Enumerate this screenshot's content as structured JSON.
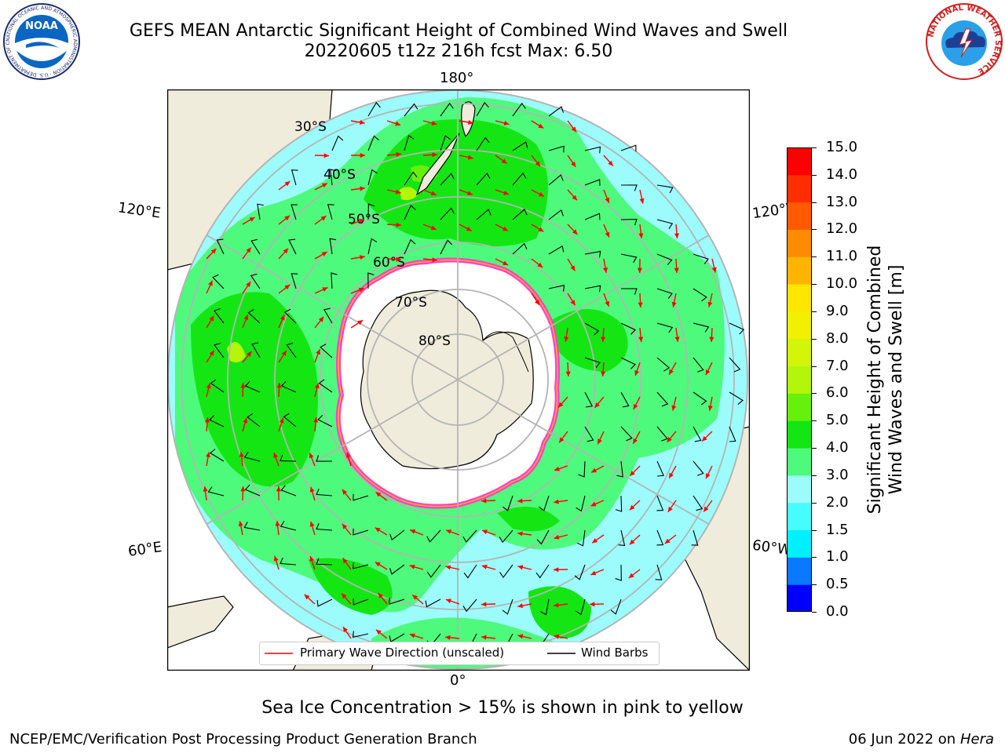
{
  "header": {
    "title_line1": "GEFS MEAN Antarctic Significant Height of Combined Wind Waves and Swell",
    "title_line2": "20220605 t12z 216h fcst   Max: 6.50"
  },
  "logos": {
    "left": {
      "name": "NOAA",
      "text": "NOAA",
      "ring_text": "NATIONAL OCEANIC AND ATMOSPHERIC ADMINISTRATION · U.S. DEPARTMENT OF COMMERCE"
    },
    "right": {
      "name": "National Weather Service",
      "ring_text": "NATIONAL WEATHER SERVICE"
    }
  },
  "map": {
    "longitude_labels": {
      "top": "180°",
      "bottom": "0°",
      "upper_left": "120°E",
      "upper_right": "120°W",
      "lower_left": "60°E",
      "lower_right": "60°W"
    },
    "latitude_labels": [
      "30°S",
      "40°S",
      "50°S",
      "60°S",
      "70°S",
      "80°S"
    ],
    "colors": {
      "ocean_light": "#9cfcfc",
      "ocean_mid": "#4efa7c",
      "ocean_high": "#14e614",
      "ocean_peak": "#66f00a",
      "land": "#efecdc",
      "ice": "#ffffff",
      "ice_edge": "#ff3cd8",
      "grid": "#b4b4b4"
    }
  },
  "colorbar": {
    "label_line1": "Significant Height of Combined",
    "label_line2": "Wind Waves and Swell [m]",
    "ticks": [
      "0.0",
      "0.5",
      "1.0",
      "1.5",
      "2.0",
      "3.0",
      "4.0",
      "5.0",
      "6.0",
      "7.0",
      "8.0",
      "9.0",
      "10.0",
      "11.0",
      "12.0",
      "13.0",
      "14.0",
      "15.0"
    ],
    "colors": [
      "#0000ff",
      "#0a78ff",
      "#00f0ff",
      "#46fcfc",
      "#9cfcfc",
      "#4efa7c",
      "#14e614",
      "#66f00a",
      "#b4f50a",
      "#d2f50a",
      "#f0f000",
      "#ffe600",
      "#ffb400",
      "#ff8c00",
      "#ff5a00",
      "#ff2d00",
      "#ff0000"
    ]
  },
  "legend": {
    "wave_label": "Primary Wave Direction (unscaled)",
    "wind_label": "Wind Barbs",
    "wave_color": "#ff0000",
    "wind_color": "#000000"
  },
  "footer": {
    "ice_note": "Sea Ice Concentration > 15% is shown in pink to yellow",
    "credit": "NCEP/EMC/Verification Post Processing Product Generation Branch",
    "date": "06 Jun 2022 on",
    "system": "Hera"
  }
}
